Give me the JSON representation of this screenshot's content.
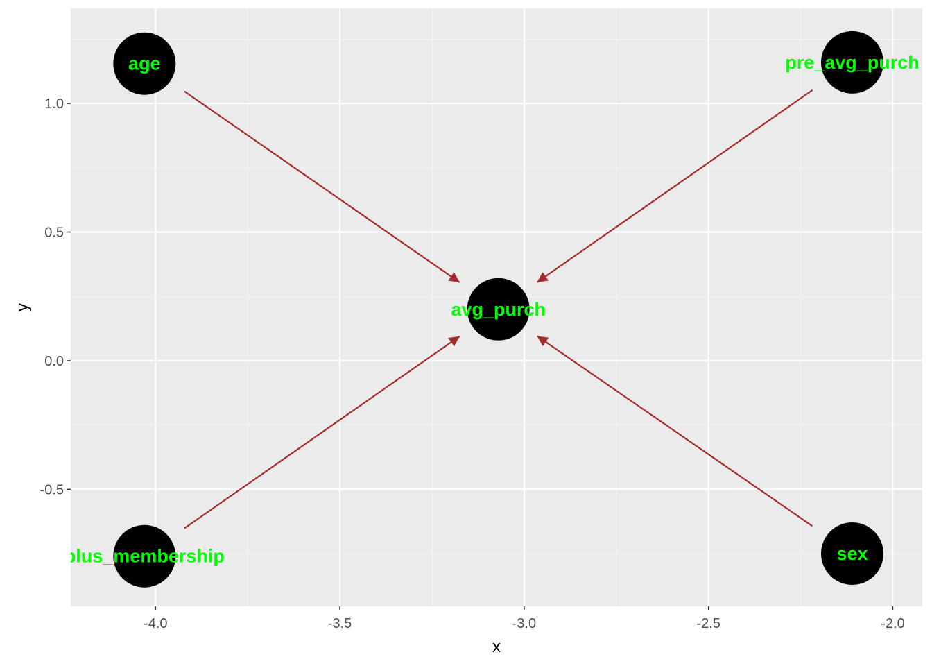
{
  "chart_data": {
    "type": "scatter",
    "subtype": "directed-graph",
    "xlabel": "x",
    "ylabel": "y",
    "xlim": [
      -4.23,
      -1.92
    ],
    "ylim": [
      -0.955,
      1.37
    ],
    "x_ticks": [
      -4.0,
      -3.5,
      -3.0,
      -2.5,
      -2.0
    ],
    "x_tick_labels": [
      "-4.0",
      "-3.5",
      "-3.0",
      "-2.5",
      "-2.0"
    ],
    "y_ticks": [
      -0.5,
      0.0,
      0.5,
      1.0
    ],
    "y_tick_labels": [
      "-0.5",
      "0.0",
      "0.5",
      "1.0"
    ],
    "grid": true,
    "legend": "none",
    "nodes": [
      {
        "name": "age",
        "x": -4.03,
        "y": 1.155
      },
      {
        "name": "pre_avg_purch",
        "x": -2.11,
        "y": 1.16
      },
      {
        "name": "avg_purch",
        "x": -3.07,
        "y": 0.2
      },
      {
        "name": "plus_membership",
        "x": -4.03,
        "y": -0.76
      },
      {
        "name": "sex",
        "x": -2.11,
        "y": -0.75
      }
    ],
    "edges": [
      {
        "from": "age",
        "to": "avg_purch"
      },
      {
        "from": "pre_avg_purch",
        "to": "avg_purch"
      },
      {
        "from": "plus_membership",
        "to": "avg_purch"
      },
      {
        "from": "sex",
        "to": "avg_purch"
      }
    ],
    "colors": {
      "panel_background": "#EBEBEB",
      "grid_major": "#FFFFFF",
      "grid_minor": "#F5F5F5",
      "node_fill": "#000000",
      "node_label": "#00FF00",
      "edge": "#A52A2A",
      "tick_text": "#4D4D4D"
    }
  }
}
